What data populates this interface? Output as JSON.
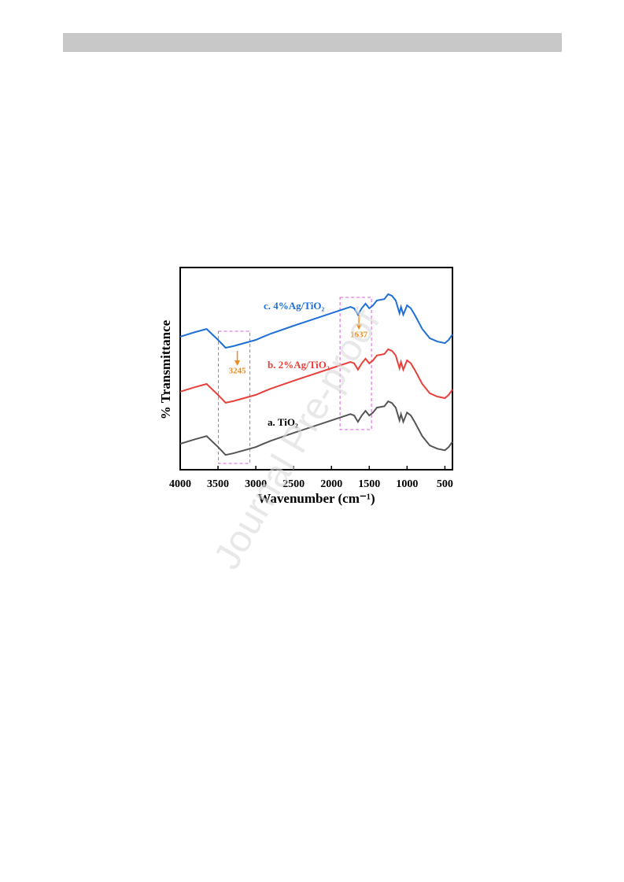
{
  "watermark": "Journal Pre-proof",
  "chart_data": {
    "type": "line",
    "x_label": "Wavenumber (cm⁻¹)",
    "y_label": "% Transmittance",
    "x": [
      4000,
      3800,
      3650,
      3500,
      3400,
      3300,
      3000,
      2900,
      2800,
      2500,
      2000,
      1750,
      1700,
      1650,
      1600,
      1550,
      1500,
      1450,
      1400,
      1300,
      1250,
      1200,
      1150,
      1100,
      1080,
      1050,
      1000,
      950,
      900,
      800,
      700,
      600,
      500,
      450,
      400
    ],
    "series": [
      {
        "name": "c. 4%Ag/TiO₂",
        "color": "#1f6fd8",
        "values": [
          65.8,
          68.1,
          69.6,
          64.2,
          60.3,
          61.1,
          64.2,
          65.8,
          67.3,
          71.2,
          77.4,
          80.5,
          79.8,
          76.7,
          79.8,
          82.1,
          79.8,
          81.3,
          83.7,
          84.4,
          86.8,
          86.0,
          83.7,
          77.4,
          80.5,
          76.7,
          81.3,
          79.8,
          76.7,
          69.6,
          65.0,
          63.4,
          62.6,
          64.2,
          66.9
        ]
      },
      {
        "name": "b. 2%Ag/TiO₂",
        "color": "#e8413c",
        "values": [
          38.6,
          40.9,
          42.4,
          37.0,
          33.1,
          33.9,
          37.0,
          38.6,
          40.1,
          44.0,
          50.2,
          53.3,
          52.6,
          49.5,
          52.6,
          54.9,
          52.6,
          54.1,
          56.5,
          57.2,
          59.6,
          58.8,
          56.5,
          50.2,
          53.3,
          49.5,
          54.1,
          52.6,
          49.5,
          42.4,
          37.8,
          36.2,
          35.4,
          37.0,
          39.7
        ]
      },
      {
        "name": "a. TiO₂",
        "color": "#555555",
        "values": [
          12.8,
          15.1,
          16.6,
          11.2,
          7.3,
          8.1,
          11.2,
          12.8,
          14.3,
          18.2,
          24.4,
          27.5,
          26.8,
          23.7,
          26.8,
          29.1,
          26.8,
          28.3,
          30.7,
          31.4,
          33.8,
          33.0,
          30.7,
          24.4,
          27.5,
          23.7,
          28.3,
          26.8,
          23.7,
          16.6,
          12.0,
          10.4,
          9.6,
          11.2,
          13.9
        ]
      }
    ],
    "annotations": [
      {
        "text": "3245",
        "x": 3245
      },
      {
        "text": "1637",
        "x": 1637
      }
    ],
    "xlim": [
      4000,
      400
    ],
    "xticks": [
      4000,
      3500,
      3000,
      2500,
      2000,
      1500,
      1000,
      500
    ],
    "ylim": [
      0,
      100
    ]
  }
}
